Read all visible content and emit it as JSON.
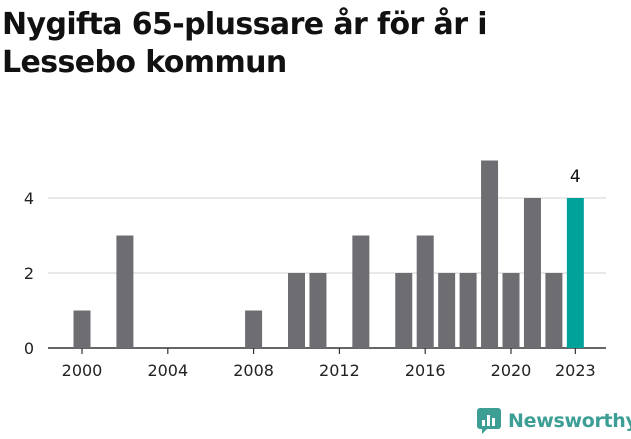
{
  "header": {
    "title": "Nygifta 65-plussare år för år i Lessebo kommun"
  },
  "brand": {
    "name": "Newsworthy",
    "icon": "newsworthy-logo-icon",
    "color": "#3d9e95"
  },
  "colors": {
    "bar": "#6e6d72",
    "highlight": "#00a29a",
    "grid": "#d9d9d9",
    "axis": "#333333"
  },
  "chart_data": {
    "type": "bar",
    "title": "Nygifta 65-plussare år för år i Lessebo kommun",
    "xlabel": "",
    "ylabel": "",
    "categories": [
      2000,
      2001,
      2002,
      2003,
      2004,
      2005,
      2006,
      2007,
      2008,
      2009,
      2010,
      2011,
      2012,
      2013,
      2014,
      2015,
      2016,
      2017,
      2018,
      2019,
      2020,
      2021,
      2022,
      2023
    ],
    "values": [
      1,
      0,
      3,
      0,
      0,
      0,
      0,
      0,
      1,
      0,
      2,
      2,
      0,
      3,
      0,
      2,
      3,
      2,
      2,
      5,
      2,
      4,
      2,
      4
    ],
    "highlight_category": 2023,
    "highlight_label": "4",
    "x_tick_labels": [
      "2000",
      "2004",
      "2008",
      "2012",
      "2016",
      "2020",
      "2023"
    ],
    "y_ticks": [
      0,
      2,
      4
    ],
    "ylim": [
      0,
      5
    ],
    "grid": true,
    "legend": "none"
  }
}
